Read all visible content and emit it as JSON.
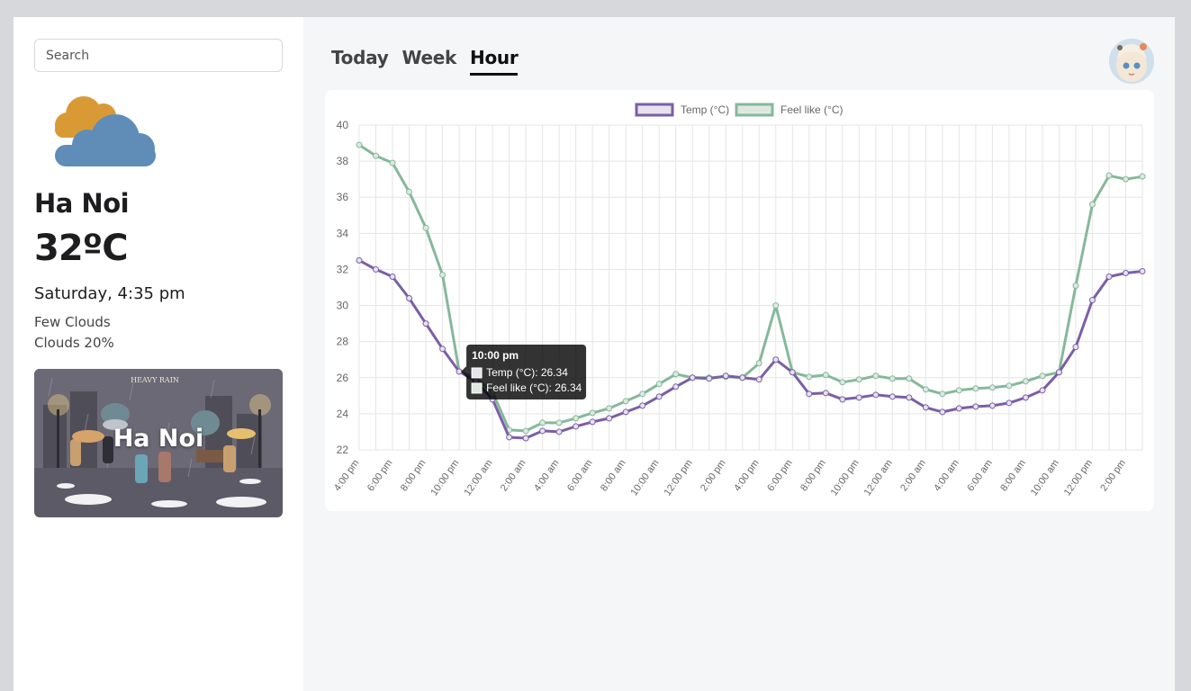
{
  "search": {
    "placeholder": "Search",
    "value": ""
  },
  "current": {
    "icon": "cloud-sun-icon",
    "city": "Ha Noi",
    "temperature": "32ºC",
    "datetime": "Saturday, 4:35 pm",
    "description": "Few Clouds",
    "clouds": "Clouds 20%"
  },
  "city_card": {
    "label": "Ha Noi",
    "image_text": "HEAVY RAIN"
  },
  "tabs": [
    {
      "label": "Today",
      "active": false
    },
    {
      "label": "Week",
      "active": false
    },
    {
      "label": "Hour",
      "active": true
    }
  ],
  "colors": {
    "temp": "#7b5ea7",
    "feel": "#86b89b",
    "accent": "#111111"
  },
  "chart_data": {
    "type": "line",
    "x": [
      "4:00 pm",
      "5:00 pm",
      "6:00 pm",
      "7:00 pm",
      "8:00 pm",
      "9:00 pm",
      "10:00 pm",
      "11:00 pm",
      "12:00 am",
      "1:00 am",
      "2:00 am",
      "3:00 am",
      "4:00 am",
      "5:00 am",
      "6:00 am",
      "7:00 am",
      "8:00 am",
      "9:00 am",
      "10:00 am",
      "11:00 am",
      "12:00 pm",
      "1:00 pm",
      "2:00 pm",
      "3:00 pm",
      "4:00 pm",
      "5:00 pm",
      "6:00 pm",
      "7:00 pm",
      "8:00 pm",
      "9:00 pm",
      "10:00 pm",
      "11:00 pm",
      "12:00 am",
      "1:00 am",
      "2:00 am",
      "3:00 am",
      "4:00 am",
      "5:00 am",
      "6:00 am",
      "7:00 am",
      "8:00 am",
      "9:00 am",
      "10:00 am",
      "11:00 am",
      "12:00 pm",
      "1:00 pm",
      "2:00 pm",
      "3:00 pm"
    ],
    "tick_labels": [
      "4:00 pm",
      "6:00 pm",
      "8:00 pm",
      "10:00 pm",
      "12:00 am",
      "2:00 am",
      "4:00 am",
      "6:00 am",
      "8:00 am",
      "10:00 am",
      "12:00 pm",
      "2:00 pm",
      "4:00 pm",
      "6:00 pm",
      "8:00 pm",
      "10:00 pm",
      "12:00 am",
      "2:00 am",
      "4:00 am",
      "6:00 am",
      "8:00 am",
      "10:00 am",
      "12:00 pm",
      "2:00 pm"
    ],
    "series": [
      {
        "name": "Temp (°C)",
        "values": [
          32.5,
          32.0,
          31.6,
          30.4,
          29.0,
          27.6,
          26.34,
          25.8,
          24.8,
          22.7,
          22.65,
          23.05,
          23.0,
          23.3,
          23.55,
          23.75,
          24.1,
          24.45,
          24.95,
          25.5,
          26.0,
          25.95,
          26.1,
          26.0,
          25.9,
          27.0,
          26.3,
          25.1,
          25.15,
          24.8,
          24.9,
          25.05,
          24.95,
          24.9,
          24.35,
          24.1,
          24.3,
          24.4,
          24.45,
          24.6,
          24.9,
          25.3,
          26.3,
          27.7,
          30.3,
          31.6,
          31.8,
          31.9
        ]
      },
      {
        "name": "Feel like (°C)",
        "values": [
          38.9,
          38.3,
          37.9,
          36.3,
          34.3,
          31.7,
          26.34,
          26.0,
          25.2,
          23.1,
          23.05,
          23.5,
          23.5,
          23.75,
          24.05,
          24.3,
          24.7,
          25.1,
          25.65,
          26.2,
          26.0,
          26.0,
          26.05,
          26.0,
          26.8,
          30.0,
          26.3,
          26.05,
          26.15,
          25.75,
          25.9,
          26.1,
          25.95,
          25.95,
          25.35,
          25.1,
          25.3,
          25.4,
          25.45,
          25.55,
          25.8,
          26.1,
          26.3,
          31.1,
          35.6,
          37.2,
          37.0,
          37.15
        ]
      }
    ],
    "ylim": [
      22,
      40
    ],
    "yticks": [
      22,
      24,
      26,
      28,
      30,
      32,
      34,
      36,
      38,
      40
    ],
    "legend": "top-center",
    "grid": true,
    "tooltip": {
      "title": "10:00 pm",
      "lines": [
        "Temp (°C): 26.34",
        "Feel like (°C): 26.34"
      ],
      "index": 6
    }
  }
}
